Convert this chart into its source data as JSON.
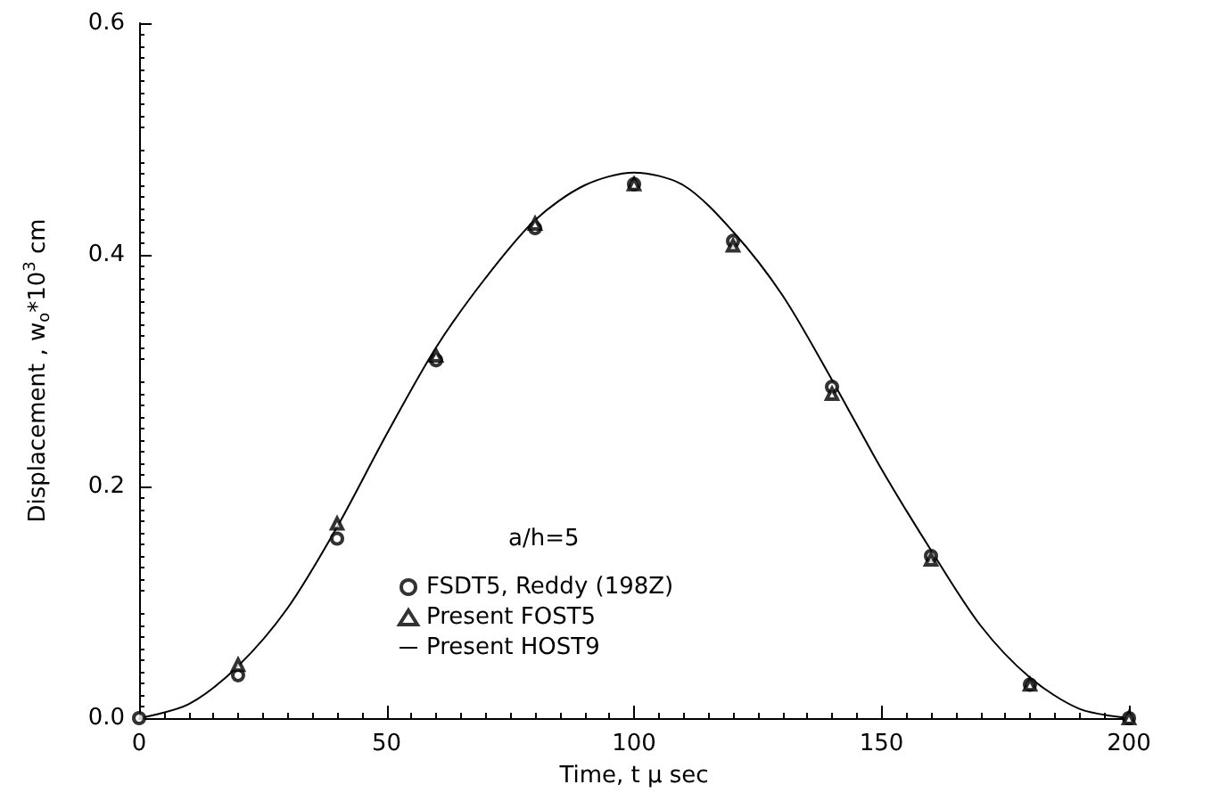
{
  "chart_data": {
    "type": "line",
    "xlabel": "Time, t μ sec",
    "ylabel": "Displacement , w$_{o}$*10$^{3}$ cm",
    "legend_title": "a/h=5",
    "legend": "center",
    "grid": false,
    "xlim": [
      0,
      200
    ],
    "xticks": [
      0,
      50,
      100,
      150,
      200
    ],
    "ylim": [
      0,
      0.6
    ],
    "yticks": [
      {
        "value": 0,
        "label": "0.0"
      },
      0.2,
      0.4,
      0.6
    ],
    "series": [
      {
        "name": "FSDT5, Reddy (198Z)",
        "type": "scatter",
        "marker": "circle",
        "color": "#000000",
        "x": [
          0,
          20,
          40,
          60,
          80,
          100,
          120,
          140,
          160,
          180,
          200
        ],
        "values": [
          0,
          0.037,
          0.155,
          0.309,
          0.423,
          0.461,
          0.412,
          0.286,
          0.14,
          0.029,
          0
        ]
      },
      {
        "name": "Present FOST5",
        "type": "scatter",
        "marker": "triangle",
        "color": "#000000",
        "x": [
          20,
          40,
          60,
          80,
          100,
          120,
          140,
          160,
          180,
          200
        ],
        "values": [
          0.046,
          0.168,
          0.313,
          0.427,
          0.461,
          0.408,
          0.28,
          0.137,
          0.029,
          0
        ]
      },
      {
        "name": "Present HOST9",
        "marker": "none",
        "line_style": "solid",
        "color": "#000000",
        "x": [
          0,
          10,
          20,
          30,
          40,
          50,
          60,
          70,
          80,
          90,
          100,
          110,
          120,
          130,
          140,
          150,
          160,
          170,
          180,
          190,
          200
        ],
        "values": [
          0,
          0.012,
          0.045,
          0.095,
          0.165,
          0.245,
          0.32,
          0.38,
          0.43,
          0.46,
          0.471,
          0.46,
          0.42,
          0.365,
          0.292,
          0.215,
          0.145,
          0.08,
          0.035,
          0.008,
          0
        ]
      }
    ]
  }
}
